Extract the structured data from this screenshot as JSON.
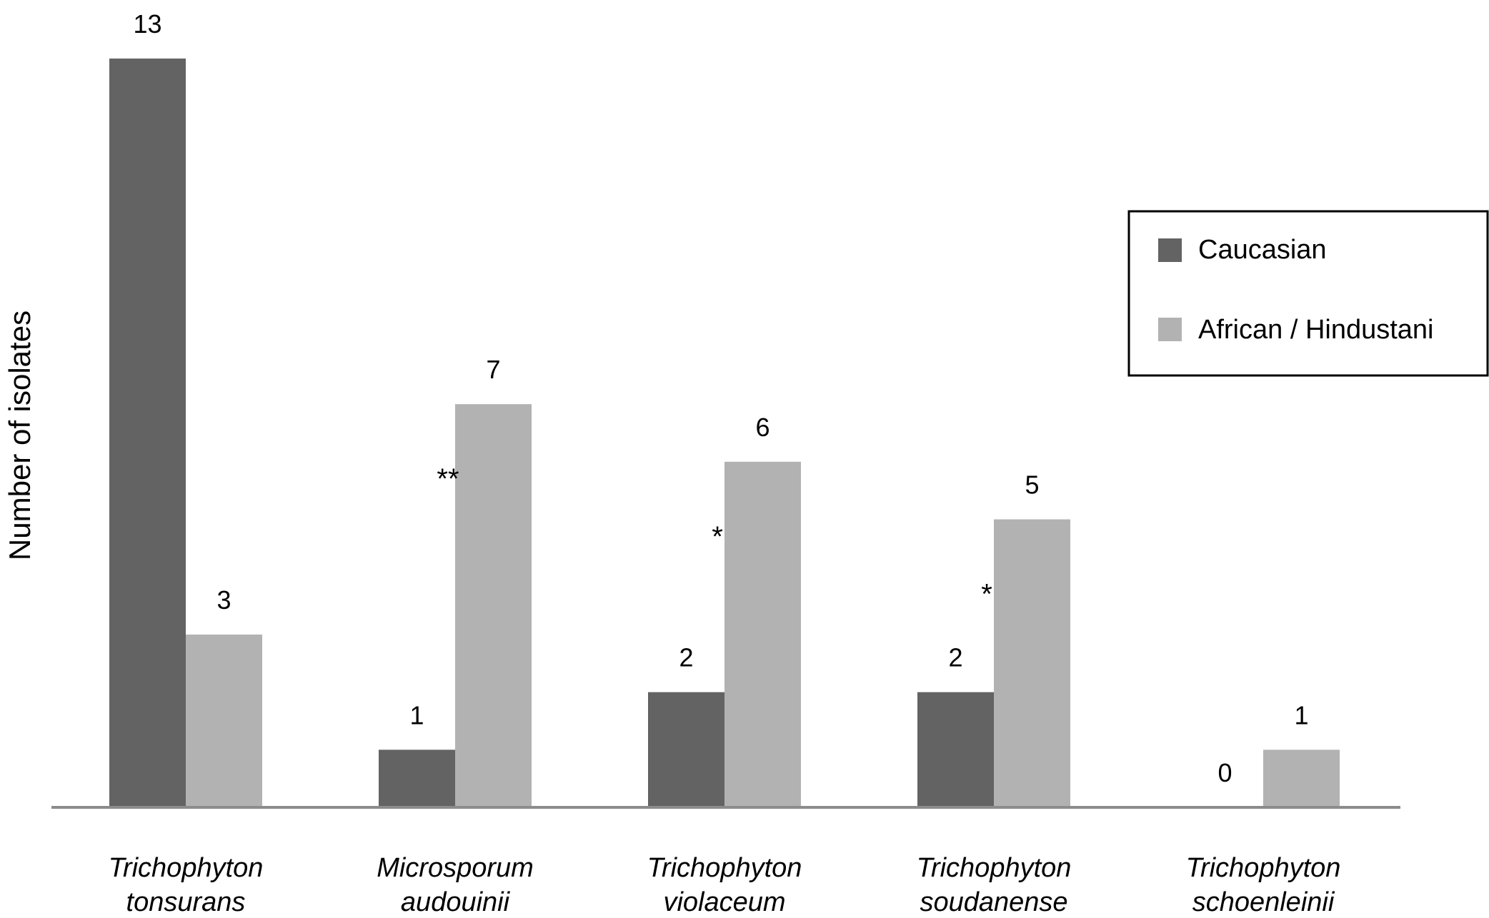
{
  "chart_data": {
    "type": "bar",
    "ylabel": "Number of isolates",
    "xlabel": "",
    "title": "",
    "ylim": [
      0,
      13
    ],
    "grid": false,
    "legend_position": "right",
    "categories": [
      [
        "Trichophyton",
        "tonsurans"
      ],
      [
        "Microsporum",
        "audouinii"
      ],
      [
        "Trichophyton",
        "violaceum"
      ],
      [
        "Trichophyton",
        "soudanense"
      ],
      [
        "Trichophyton",
        "schoenleinii"
      ]
    ],
    "series": [
      {
        "name": "Caucasian",
        "color": "#636363",
        "values": [
          13,
          1,
          2,
          2,
          0
        ]
      },
      {
        "name": "African / Hindustani",
        "color": "#b2b2b2",
        "values": [
          3,
          7,
          6,
          5,
          1
        ]
      }
    ],
    "significance": [
      "",
      "**",
      "*",
      "*",
      ""
    ]
  }
}
